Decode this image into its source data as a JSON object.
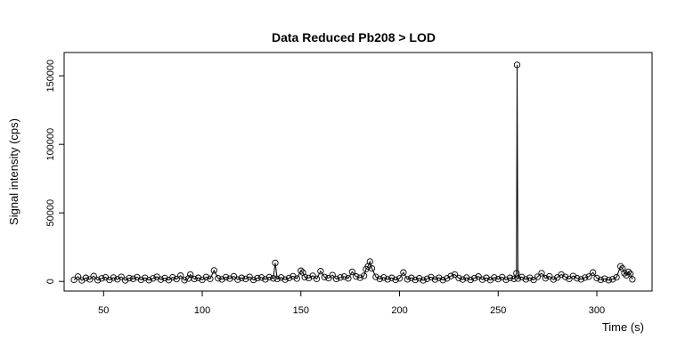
{
  "chart_data": {
    "type": "scatter",
    "title": "Data Reduced Pb208 > LOD",
    "xlabel": "Time (s)",
    "ylabel": "Signal intensity (cps)",
    "xlim": [
      30,
      328
    ],
    "ylim": [
      -7000,
      167000
    ],
    "x_ticks": [
      50,
      100,
      150,
      200,
      250,
      300
    ],
    "y_ticks": [
      0,
      50000,
      100000,
      150000
    ],
    "x_tick_labels": [
      "50",
      "100",
      "150",
      "200",
      "250",
      "300"
    ],
    "y_tick_labels": [
      "0",
      "50000",
      "100000",
      "150000"
    ],
    "grid": false,
    "style": "points connected by lines (R type='b')",
    "series": [
      {
        "x": [
          35,
          37,
          39,
          41,
          43,
          45,
          47,
          49,
          51,
          53,
          55,
          57,
          59,
          61,
          63,
          65,
          67,
          69,
          71,
          73,
          75,
          77,
          79,
          81,
          83,
          85,
          87,
          89,
          91,
          93,
          94,
          96,
          98,
          100,
          102,
          104,
          106,
          108,
          110,
          112,
          114,
          116,
          118,
          120,
          122,
          124,
          126,
          128,
          130,
          132,
          134,
          136,
          137,
          138,
          140,
          142,
          144,
          146,
          148,
          150,
          151,
          152,
          154,
          156,
          158,
          160,
          162,
          164,
          166,
          168,
          170,
          172,
          174,
          176,
          178,
          180,
          182,
          183,
          184,
          185,
          186,
          188,
          190,
          192,
          194,
          196,
          198,
          200,
          202,
          204,
          206,
          208,
          210,
          212,
          214,
          216,
          218,
          220,
          222,
          224,
          226,
          228,
          230,
          232,
          234,
          236,
          238,
          240,
          242,
          244,
          246,
          248,
          250,
          252,
          254,
          256,
          258,
          259.3,
          259.6,
          260,
          262,
          264,
          266,
          268,
          270,
          272,
          274,
          276,
          278,
          280,
          282,
          284,
          286,
          288,
          290,
          292,
          294,
          296,
          298,
          300,
          302,
          304,
          306,
          308,
          310,
          312,
          313,
          314,
          315,
          316,
          317,
          318
        ],
        "y": [
          1200,
          3500,
          800,
          2600,
          1500,
          3900,
          900,
          2200,
          3000,
          1100,
          2800,
          1600,
          3300,
          800,
          2400,
          1900,
          3100,
          1200,
          2700,
          900,
          2200,
          3400,
          1300,
          2500,
          1000,
          3000,
          1700,
          4200,
          900,
          2100,
          5000,
          1800,
          2600,
          1200,
          3200,
          1900,
          8000,
          2300,
          1500,
          3100,
          2000,
          3700,
          1300,
          2600,
          1800,
          3300,
          1100,
          2400,
          2900,
          1500,
          3100,
          2200,
          13500,
          1800,
          2900,
          1300,
          2500,
          3800,
          2100,
          7800,
          6500,
          3100,
          2500,
          4100,
          1900,
          7500,
          3200,
          2400,
          4600,
          1800,
          2900,
          3500,
          2200,
          7000,
          3600,
          2700,
          4100,
          9000,
          11000,
          14500,
          9500,
          3300,
          1800,
          2900,
          1500,
          2600,
          1200,
          2200,
          6500,
          1500,
          2600,
          1100,
          2300,
          800,
          1900,
          3100,
          1400,
          2700,
          1000,
          2200,
          3900,
          5000,
          2500,
          1400,
          2800,
          1100,
          2400,
          3600,
          1300,
          2600,
          1000,
          2900,
          1700,
          3100,
          1200,
          2600,
          1900,
          6000,
          158000,
          2100,
          3200,
          1500,
          2700,
          1100,
          3400,
          6000,
          2300,
          3700,
          1400,
          2900,
          5000,
          3300,
          1800,
          4000,
          2300,
          1500,
          2800,
          3500,
          6500,
          2500,
          1200,
          2000,
          900,
          1600,
          3000,
          11000,
          9500,
          6000,
          4500,
          7000,
          5500,
          1500
        ]
      }
    ]
  }
}
